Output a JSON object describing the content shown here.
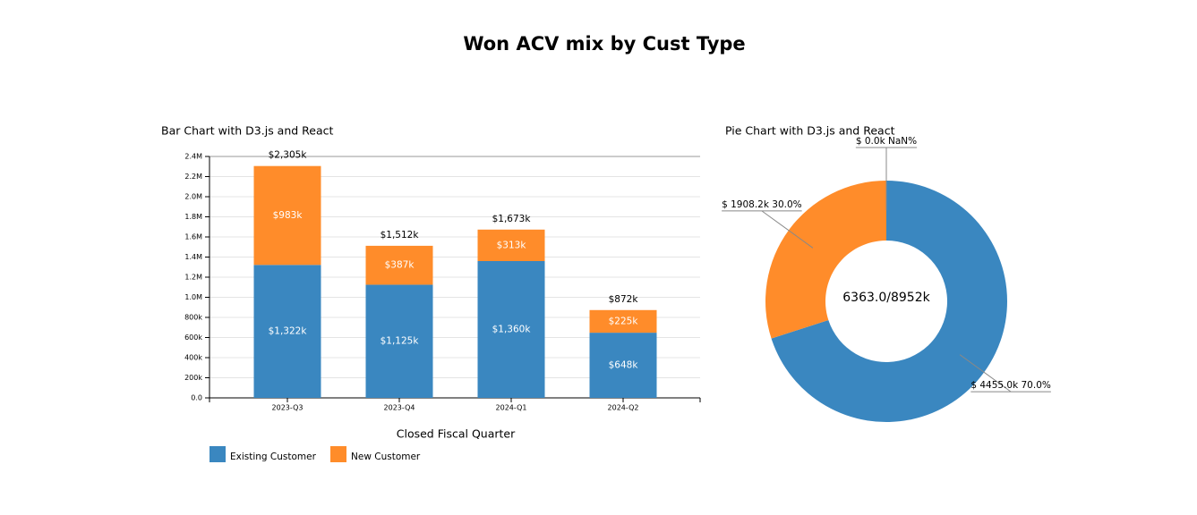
{
  "title": "Won ACV mix by Cust Type",
  "chart_data": [
    {
      "type": "bar",
      "stacked": true,
      "title": "Bar Chart with D3.js and React",
      "x_label": "Closed Fiscal Quarter",
      "categories": [
        "2023-Q3",
        "2023-Q4",
        "2024-Q1",
        "2024-Q2"
      ],
      "series": [
        {
          "name": "Existing Customer",
          "color": "#3a87c0",
          "values": [
            1322000,
            1125000,
            1360000,
            648000
          ],
          "value_labels": [
            "$1,322k",
            "$1,125k",
            "$1,360k",
            "$648k"
          ]
        },
        {
          "name": "New Customer",
          "color": "#ff8c2a",
          "values": [
            983000,
            387000,
            313000,
            225000
          ],
          "value_labels": [
            "$983k",
            "$387k",
            "$313k",
            "$225k"
          ]
        }
      ],
      "totals": [
        2305000,
        1512000,
        1673000,
        872000
      ],
      "total_labels": [
        "$2,305k",
        "$1,512k",
        "$1,673k",
        "$872k"
      ],
      "ylim": [
        0,
        2400000
      ],
      "yticks": [
        {
          "value": 0,
          "label": "0.0"
        },
        {
          "value": 200000,
          "label": "200k"
        },
        {
          "value": 400000,
          "label": "400k"
        },
        {
          "value": 600000,
          "label": "600k"
        },
        {
          "value": 800000,
          "label": "800k"
        },
        {
          "value": 1000000,
          "label": "1.0M"
        },
        {
          "value": 1200000,
          "label": "1.2M"
        },
        {
          "value": 1400000,
          "label": "1.4M"
        },
        {
          "value": 1600000,
          "label": "1.6M"
        },
        {
          "value": 1800000,
          "label": "1.8M"
        },
        {
          "value": 2000000,
          "label": "2.0M"
        },
        {
          "value": 2200000,
          "label": "2.2M"
        },
        {
          "value": 2400000,
          "label": "2.4M"
        }
      ],
      "grid": true
    },
    {
      "type": "pie",
      "donut": true,
      "title": "Pie Chart with D3.js and React",
      "values": [
        4455.0,
        1908.2,
        0.0
      ],
      "value_labels": [
        "$ 4455.0k 70.0%",
        "$ 1908.2k 30.0%",
        "$ 0.0k NaN%"
      ],
      "colors": [
        "#3a87c0",
        "#ff8c2a",
        "#2ca02c"
      ],
      "center_label": "6363.0/8952k"
    }
  ]
}
